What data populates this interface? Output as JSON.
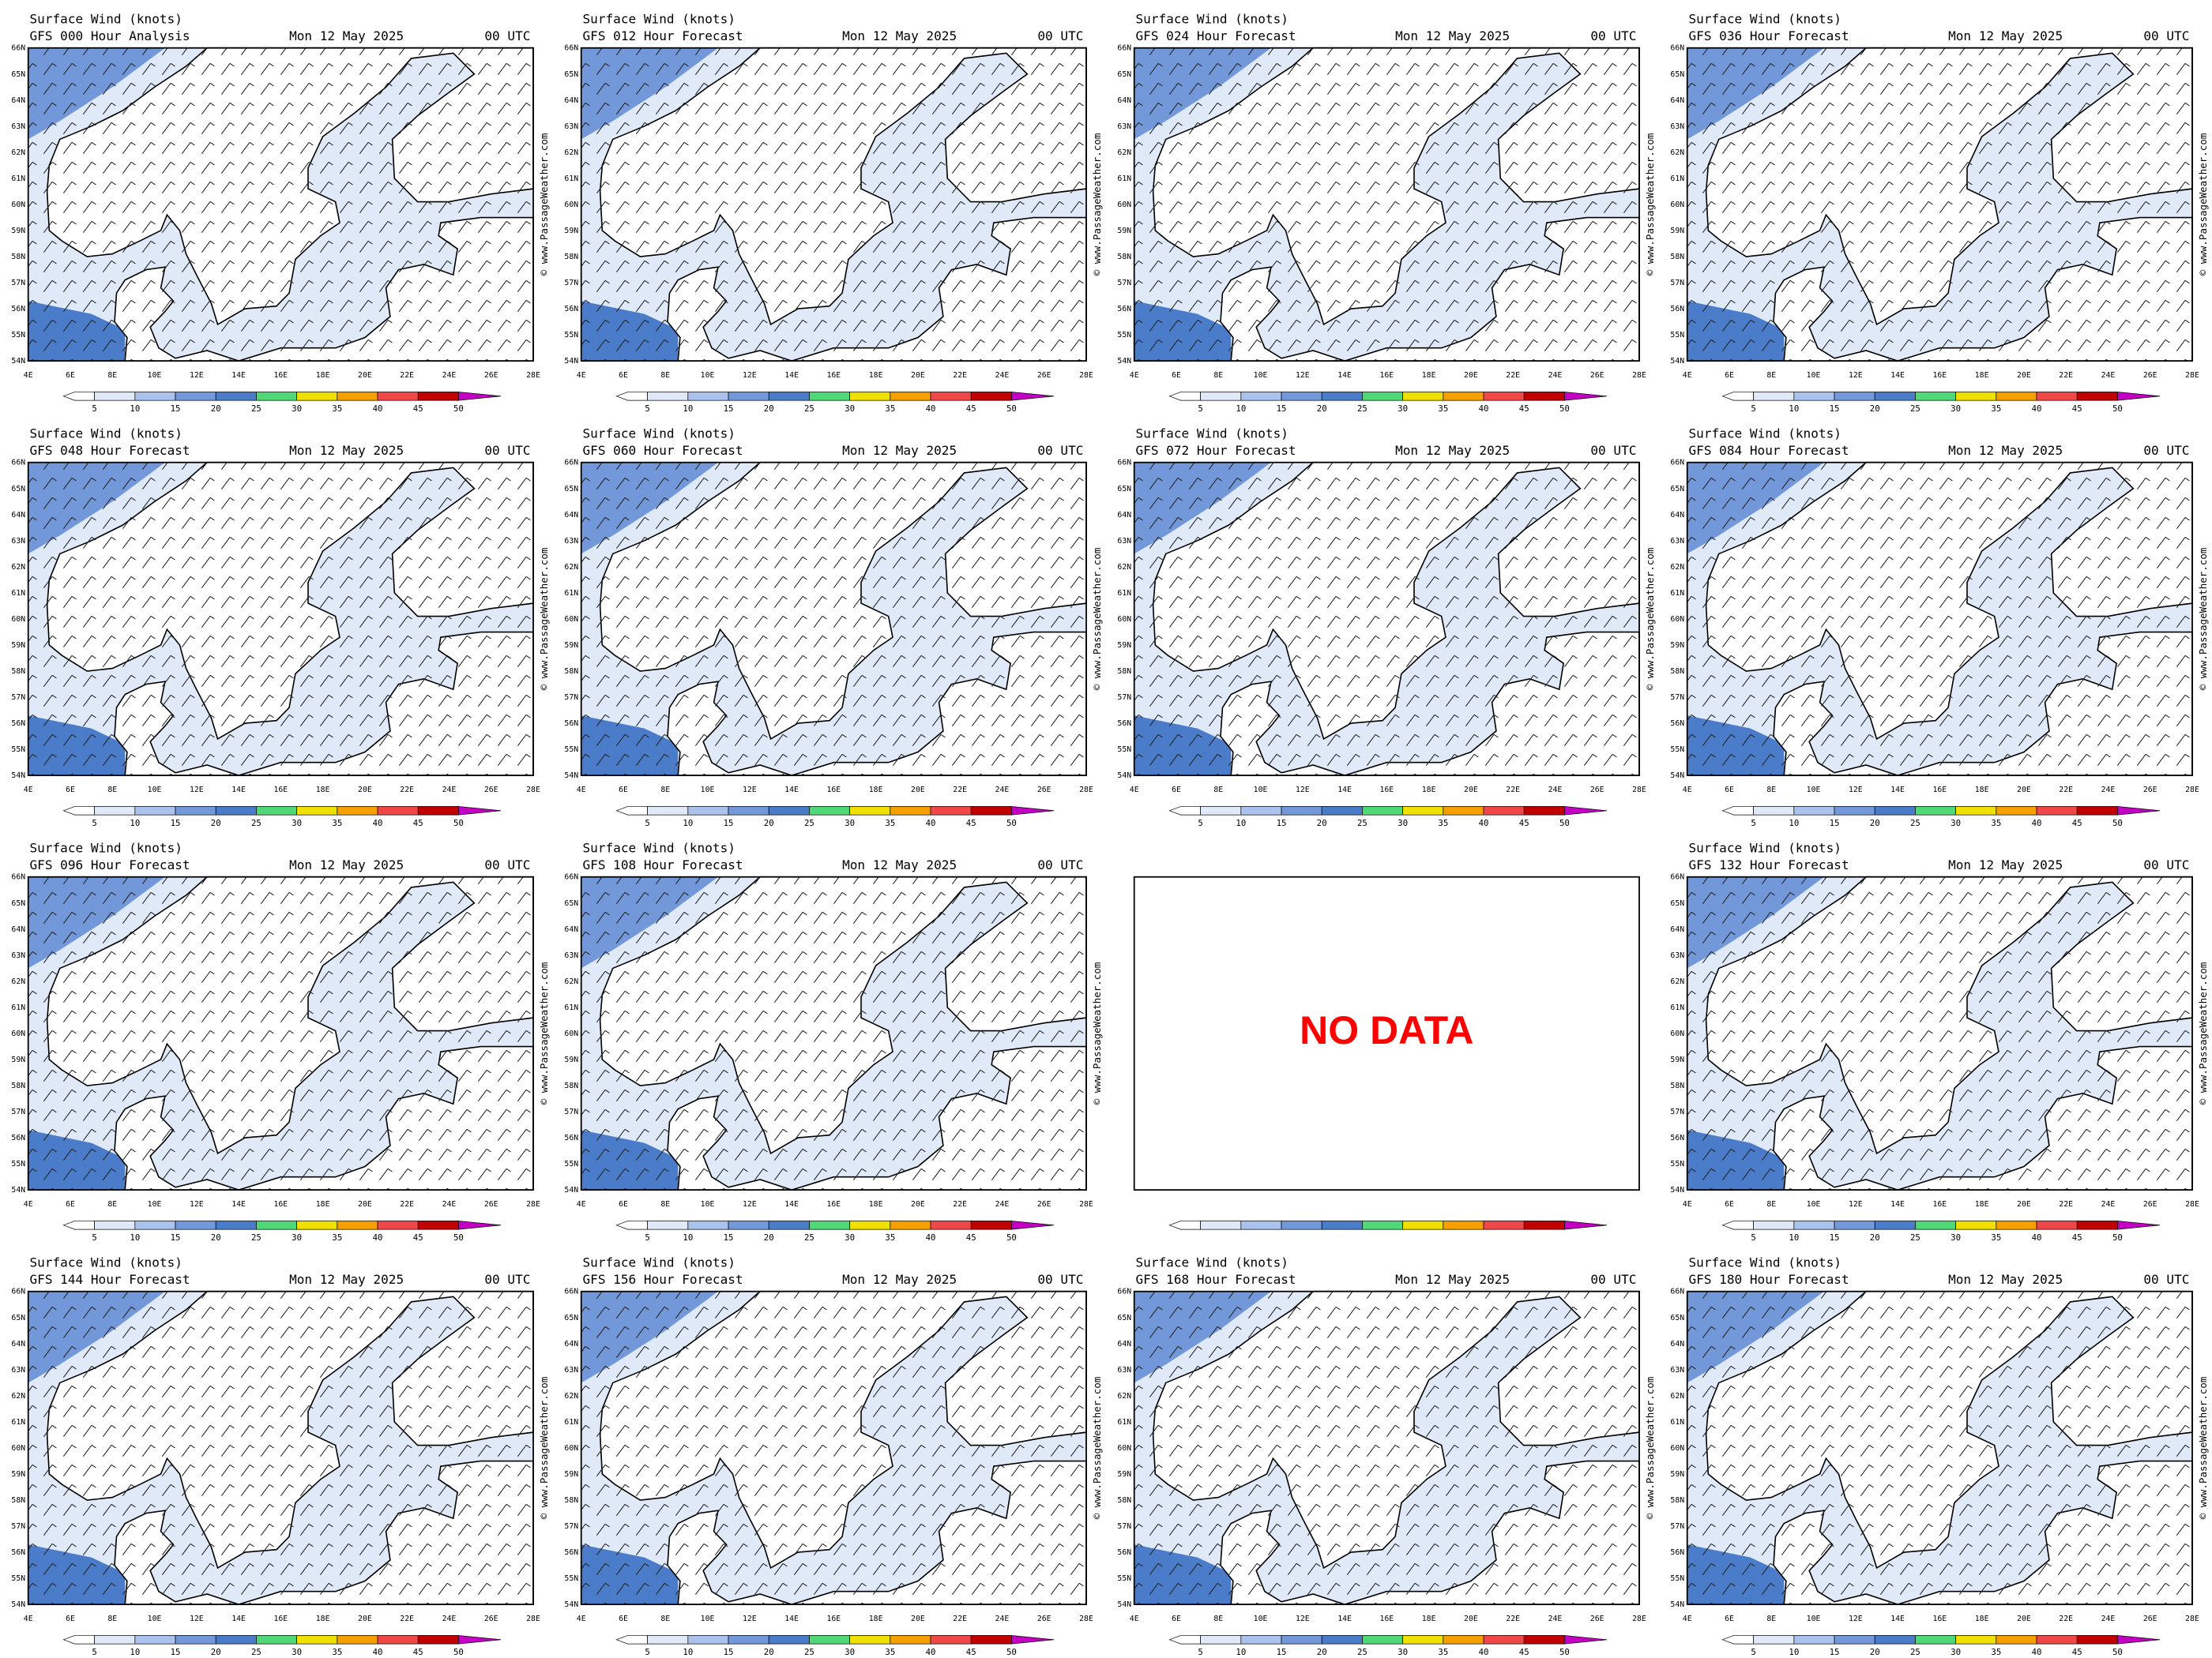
{
  "panel_title": "Surface Wind (knots)",
  "date": "Mon 12 May 2025",
  "time": "00 UTC",
  "watermark": "© www.PassageWeather.com",
  "lat_labels": [
    "66N",
    "65N",
    "64N",
    "63N",
    "62N",
    "61N",
    "60N",
    "59N",
    "58N",
    "57N",
    "56N",
    "55N",
    "54N"
  ],
  "lon_labels": [
    "4E",
    "6E",
    "8E",
    "10E",
    "12E",
    "14E",
    "16E",
    "18E",
    "20E",
    "22E",
    "24E",
    "26E",
    "28E"
  ],
  "colorbar": {
    "labels": [
      5,
      10,
      15,
      20,
      25,
      30,
      35,
      40,
      45,
      50
    ],
    "colors": [
      "#ffffff",
      "#dfe9f8",
      "#abc3ec",
      "#7398d9",
      "#4a7cc9",
      "#50d878",
      "#f0e000",
      "#f5a000",
      "#f04848",
      "#c00000",
      "#c400c4"
    ]
  },
  "panels": [
    {
      "forecast": "GFS 000 Hour Analysis"
    },
    {
      "forecast": "GFS 012 Hour Forecast"
    },
    {
      "forecast": "GFS 024 Hour Forecast"
    },
    {
      "forecast": "GFS 036 Hour Forecast"
    },
    {
      "forecast": "GFS 048 Hour Forecast"
    },
    {
      "forecast": "GFS 060 Hour Forecast"
    },
    {
      "forecast": "GFS 072 Hour Forecast"
    },
    {
      "forecast": "GFS 084 Hour Forecast"
    },
    {
      "forecast": "GFS 096 Hour Forecast"
    },
    {
      "forecast": "GFS 108 Hour Forecast"
    },
    {
      "message": "NO DATA"
    },
    {
      "forecast": "GFS 132 Hour Forecast"
    },
    {
      "forecast": "GFS 144 Hour Forecast"
    },
    {
      "forecast": "GFS 156 Hour Forecast"
    },
    {
      "forecast": "GFS 168 Hour Forecast"
    },
    {
      "forecast": "GFS 180 Hour Forecast"
    }
  ]
}
